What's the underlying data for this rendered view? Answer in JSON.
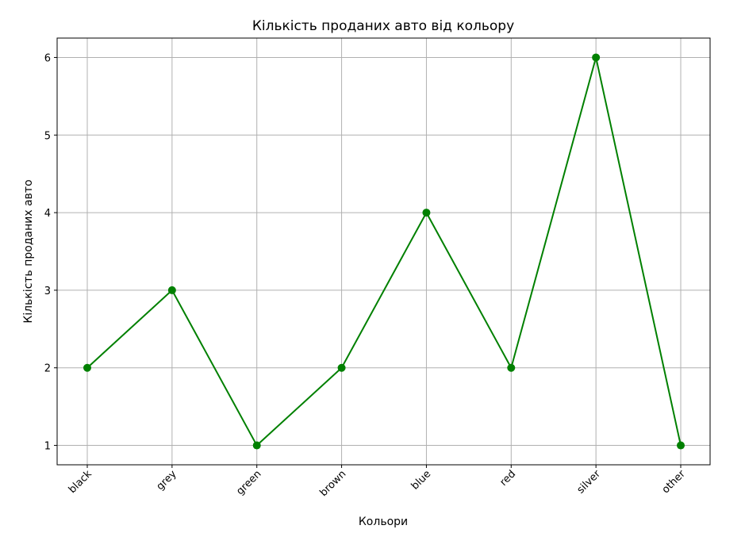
{
  "chart_data": {
    "type": "line",
    "title": "Кількість проданих авто від кольору",
    "xlabel": "Кольори",
    "ylabel": "Кількість проданих авто",
    "categories": [
      "black",
      "grey",
      "green",
      "brown",
      "blue",
      "red",
      "silver",
      "other"
    ],
    "series": [
      {
        "name": "Кількість проданих авто",
        "values": [
          2,
          3,
          1,
          2,
          4,
          2,
          6,
          1
        ]
      }
    ],
    "ylim": [
      0.75,
      6.25
    ],
    "yticks": [
      1,
      2,
      3,
      4,
      5,
      6
    ],
    "grid": true,
    "marker": "circle",
    "line_color": "#008000",
    "x_tick_rotation": 45
  }
}
